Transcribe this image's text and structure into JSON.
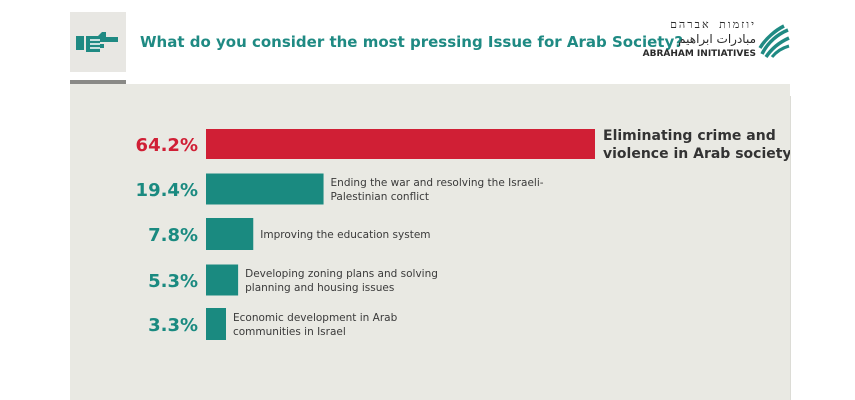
{
  "header": {
    "title": "What do you consider the most pressing Issue for Arab Society?",
    "icon": "pointing-hand-icon"
  },
  "logo": {
    "hebrew": "יוזמות אברהם",
    "arabic": "مبادرات ابراهيم",
    "english": "ABRAHAM INITIATIVES"
  },
  "colors": {
    "highlight": "#d01f35",
    "bar": "#1a8a80",
    "title": "#1f8a83",
    "panel": "#e9e9e3"
  },
  "chart_data": {
    "type": "bar",
    "orientation": "horizontal",
    "categories": [
      [
        "Eliminating crime and",
        "violence in Arab society"
      ],
      [
        "Ending the war and resolving the Israeli-",
        "Palestinian conflict"
      ],
      [
        "Improving the education system"
      ],
      [
        "Developing zoning plans and solving",
        "planning and housing issues"
      ],
      [
        "Economic development in Arab",
        "communities in Israel"
      ]
    ],
    "values": [
      64.2,
      19.4,
      7.8,
      5.3,
      3.3
    ],
    "value_labels": [
      "64.2%",
      "19.4%",
      "7.8%",
      "5.3%",
      "3.3%"
    ],
    "highlight_index": 0,
    "unit": "%"
  }
}
